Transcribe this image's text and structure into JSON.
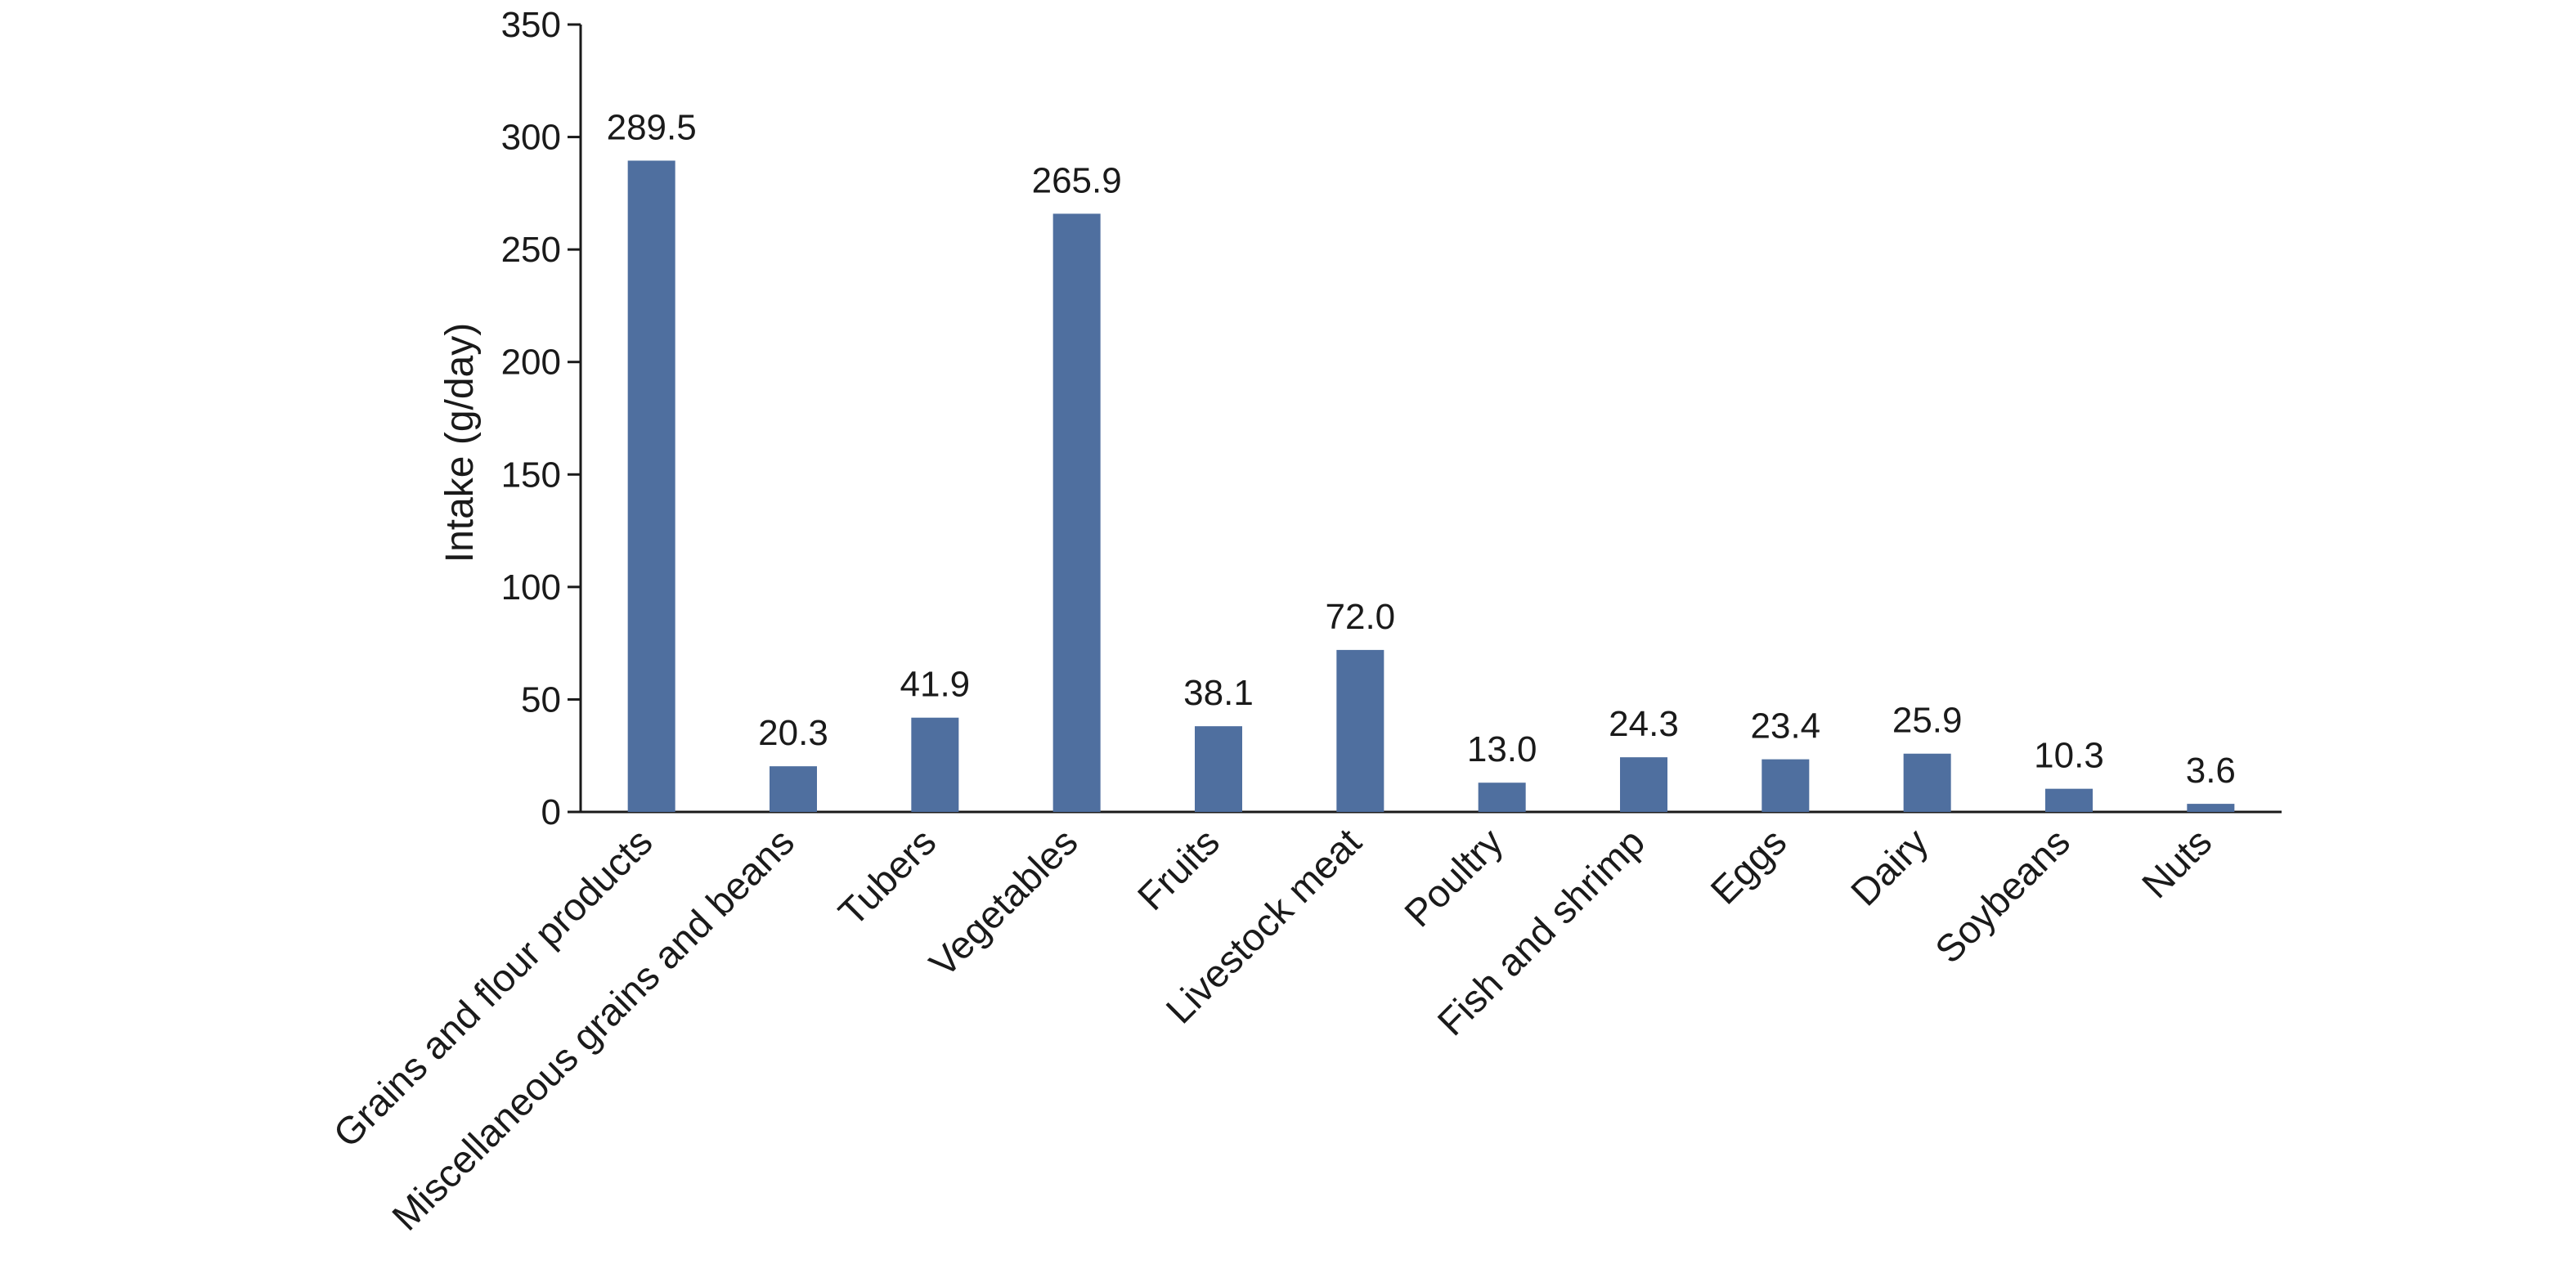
{
  "chart_data": {
    "type": "bar",
    "title": "",
    "xlabel": "",
    "ylabel": "Intake (g/day)",
    "ylim": [
      0,
      350
    ],
    "yticks": [
      0,
      50,
      100,
      150,
      200,
      250,
      300,
      350
    ],
    "grid": false,
    "legend": "none",
    "bar_color": "#4f6f9f",
    "axis_color": "#1a1a1a",
    "categories": [
      "Grains and flour products",
      "Miscellaneous grains and beans",
      "Tubers",
      "Vegetables",
      "Fruits",
      "Livestock meat",
      "Poultry",
      "Fish and shrimp",
      "Eggs",
      "Dairy",
      "Soybeans",
      "Nuts"
    ],
    "values": [
      289.5,
      20.3,
      41.9,
      265.9,
      38.1,
      72.0,
      13.0,
      24.3,
      23.4,
      25.9,
      10.3,
      3.6
    ],
    "value_labels": [
      "289.5",
      "20.3",
      "41.9",
      "265.9",
      "38.1",
      "72.0",
      "13.0",
      "24.3",
      "23.4",
      "25.9",
      "10.3",
      "3.6"
    ]
  }
}
